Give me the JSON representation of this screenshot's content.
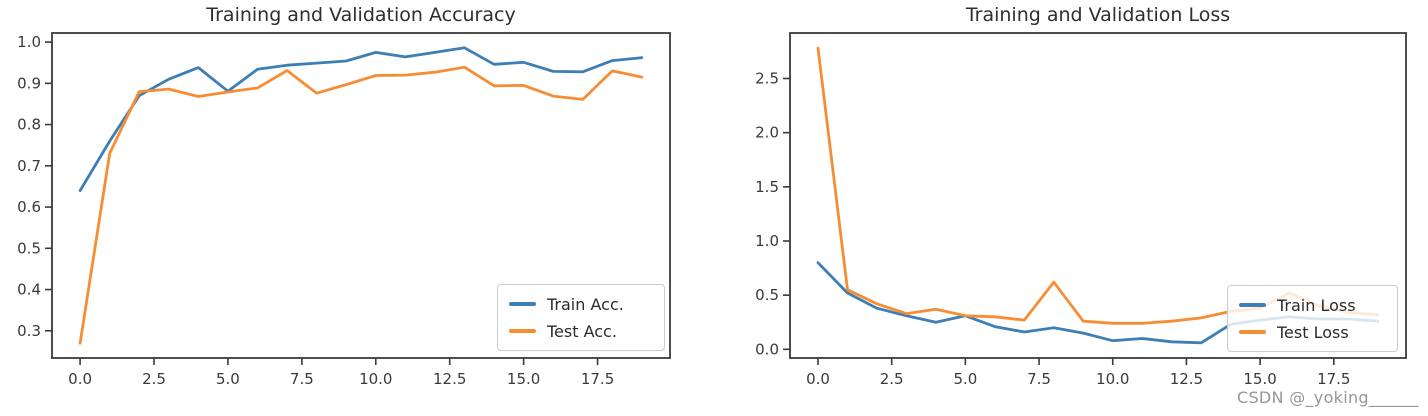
{
  "figure": {
    "background": "#ffffff"
  },
  "watermark": {
    "text": "CSDN @_yoking______",
    "color": "#8c8c8c"
  },
  "chart_data": [
    {
      "type": "line",
      "title": "Training and Validation Accuracy",
      "xlabel": "",
      "ylabel": "",
      "x": [
        0,
        1,
        2,
        3,
        4,
        5,
        6,
        7,
        8,
        9,
        10,
        11,
        12,
        13,
        14,
        15,
        16,
        17,
        18,
        19
      ],
      "series": [
        {
          "name": "Train Acc.",
          "color": "#3d7fb5",
          "values": [
            0.64,
            0.76,
            0.87,
            0.91,
            0.938,
            0.881,
            0.934,
            0.944,
            0.949,
            0.954,
            0.975,
            0.964,
            0.975,
            0.986,
            0.946,
            0.951,
            0.929,
            0.928,
            0.955,
            0.962
          ]
        },
        {
          "name": "Test Acc.",
          "color": "#f78d33",
          "values": [
            0.27,
            0.73,
            0.88,
            0.886,
            0.868,
            0.879,
            0.889,
            0.931,
            0.876,
            0.897,
            0.919,
            0.92,
            0.927,
            0.939,
            0.894,
            0.895,
            0.869,
            0.861,
            0.93,
            0.915
          ]
        }
      ],
      "xlim": [
        -0.95,
        19.95
      ],
      "ylim": [
        0.234,
        1.022
      ],
      "xticks": [
        0,
        2.5,
        5,
        7.5,
        10,
        12.5,
        15,
        17.5
      ],
      "xtick_labels": [
        "0.0",
        "2.5",
        "5.0",
        "7.5",
        "10.0",
        "12.5",
        "15.0",
        "17.5"
      ],
      "yticks": [
        0.3,
        0.4,
        0.5,
        0.6,
        0.7,
        0.8,
        0.9,
        1.0
      ],
      "ytick_labels": [
        "0.3",
        "0.4",
        "0.5",
        "0.6",
        "0.7",
        "0.8",
        "0.9",
        "1.0"
      ],
      "legend_position": "lower right",
      "grid": false
    },
    {
      "type": "line",
      "title": "Training and Validation Loss",
      "xlabel": "",
      "ylabel": "",
      "x": [
        0,
        1,
        2,
        3,
        4,
        5,
        6,
        7,
        8,
        9,
        10,
        11,
        12,
        13,
        14,
        15,
        16,
        17,
        18,
        19
      ],
      "series": [
        {
          "name": "Train Loss",
          "color": "#3d7fb5",
          "values": [
            0.8,
            0.52,
            0.38,
            0.31,
            0.25,
            0.31,
            0.21,
            0.16,
            0.2,
            0.15,
            0.08,
            0.1,
            0.07,
            0.06,
            0.23,
            0.27,
            0.3,
            0.28,
            0.28,
            0.26
          ]
        },
        {
          "name": "Test Loss",
          "color": "#f78d33",
          "values": [
            2.78,
            0.55,
            0.42,
            0.33,
            0.37,
            0.31,
            0.3,
            0.27,
            0.62,
            0.26,
            0.24,
            0.24,
            0.26,
            0.29,
            0.35,
            0.38,
            0.52,
            0.4,
            0.34,
            0.32
          ]
        }
      ],
      "xlim": [
        -0.95,
        19.95
      ],
      "ylim": [
        -0.08,
        2.92
      ],
      "xticks": [
        0,
        2.5,
        5,
        7.5,
        10,
        12.5,
        15,
        17.5
      ],
      "xtick_labels": [
        "0.0",
        "2.5",
        "5.0",
        "7.5",
        "10.0",
        "12.5",
        "15.0",
        "17.5"
      ],
      "yticks": [
        0.0,
        0.5,
        1.0,
        1.5,
        2.0,
        2.5
      ],
      "ytick_labels": [
        "0.0",
        "0.5",
        "1.0",
        "1.5",
        "2.0",
        "2.5"
      ],
      "legend_position": "lower right",
      "grid": false
    }
  ]
}
